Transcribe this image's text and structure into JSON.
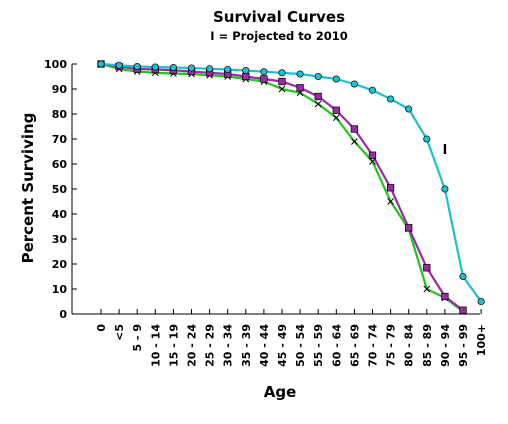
{
  "chart_data": {
    "type": "line",
    "title": "Survival Curves",
    "subtitle": "I = Projected to 2010",
    "xlabel": "Age",
    "ylabel": "Percent Surviving",
    "ylim": [
      0,
      100
    ],
    "yticks": [
      0,
      10,
      20,
      30,
      40,
      50,
      60,
      70,
      80,
      90,
      100
    ],
    "grid": false,
    "legend": "none",
    "categories": [
      "0",
      "<5",
      "5 - 9",
      "10 - 14",
      "15 - 19",
      "20 - 24",
      "25 - 29",
      "30 - 34",
      "35 - 39",
      "40 - 44",
      "45 - 49",
      "50 - 54",
      "55 - 59",
      "60 - 64",
      "65 - 69",
      "70 - 74",
      "75 - 79",
      "80 - 84",
      "85 - 89",
      "90 - 94",
      "95 - 99",
      "100+"
    ],
    "annotations": [
      {
        "text": "I",
        "x": "90 - 94",
        "y": 64
      }
    ],
    "series": [
      {
        "color": "#1ec0d0",
        "marker": "circle",
        "values": [
          100,
          99.5,
          99,
          98.8,
          98.6,
          98.4,
          98.1,
          97.8,
          97.4,
          96.9,
          96.5,
          96,
          95,
          94,
          92,
          89.5,
          86,
          82,
          70,
          50,
          15,
          5
        ]
      },
      {
        "color": "#9b2ba6",
        "marker": "square",
        "values": [
          100,
          99,
          98,
          97.8,
          97.5,
          97,
          96.5,
          96,
          95,
          94,
          93,
          90.5,
          87,
          81.5,
          74,
          63.5,
          50.5,
          34.5,
          18.5,
          7,
          1.5,
          null
        ]
      },
      {
        "color": "#22c41e",
        "marker": "x",
        "values": [
          100,
          98,
          97,
          96.5,
          96.2,
          96,
          95.5,
          95,
          94,
          93,
          90,
          88.5,
          84,
          78.5,
          69,
          61,
          45,
          34,
          10,
          6.5,
          1,
          null
        ]
      }
    ]
  }
}
